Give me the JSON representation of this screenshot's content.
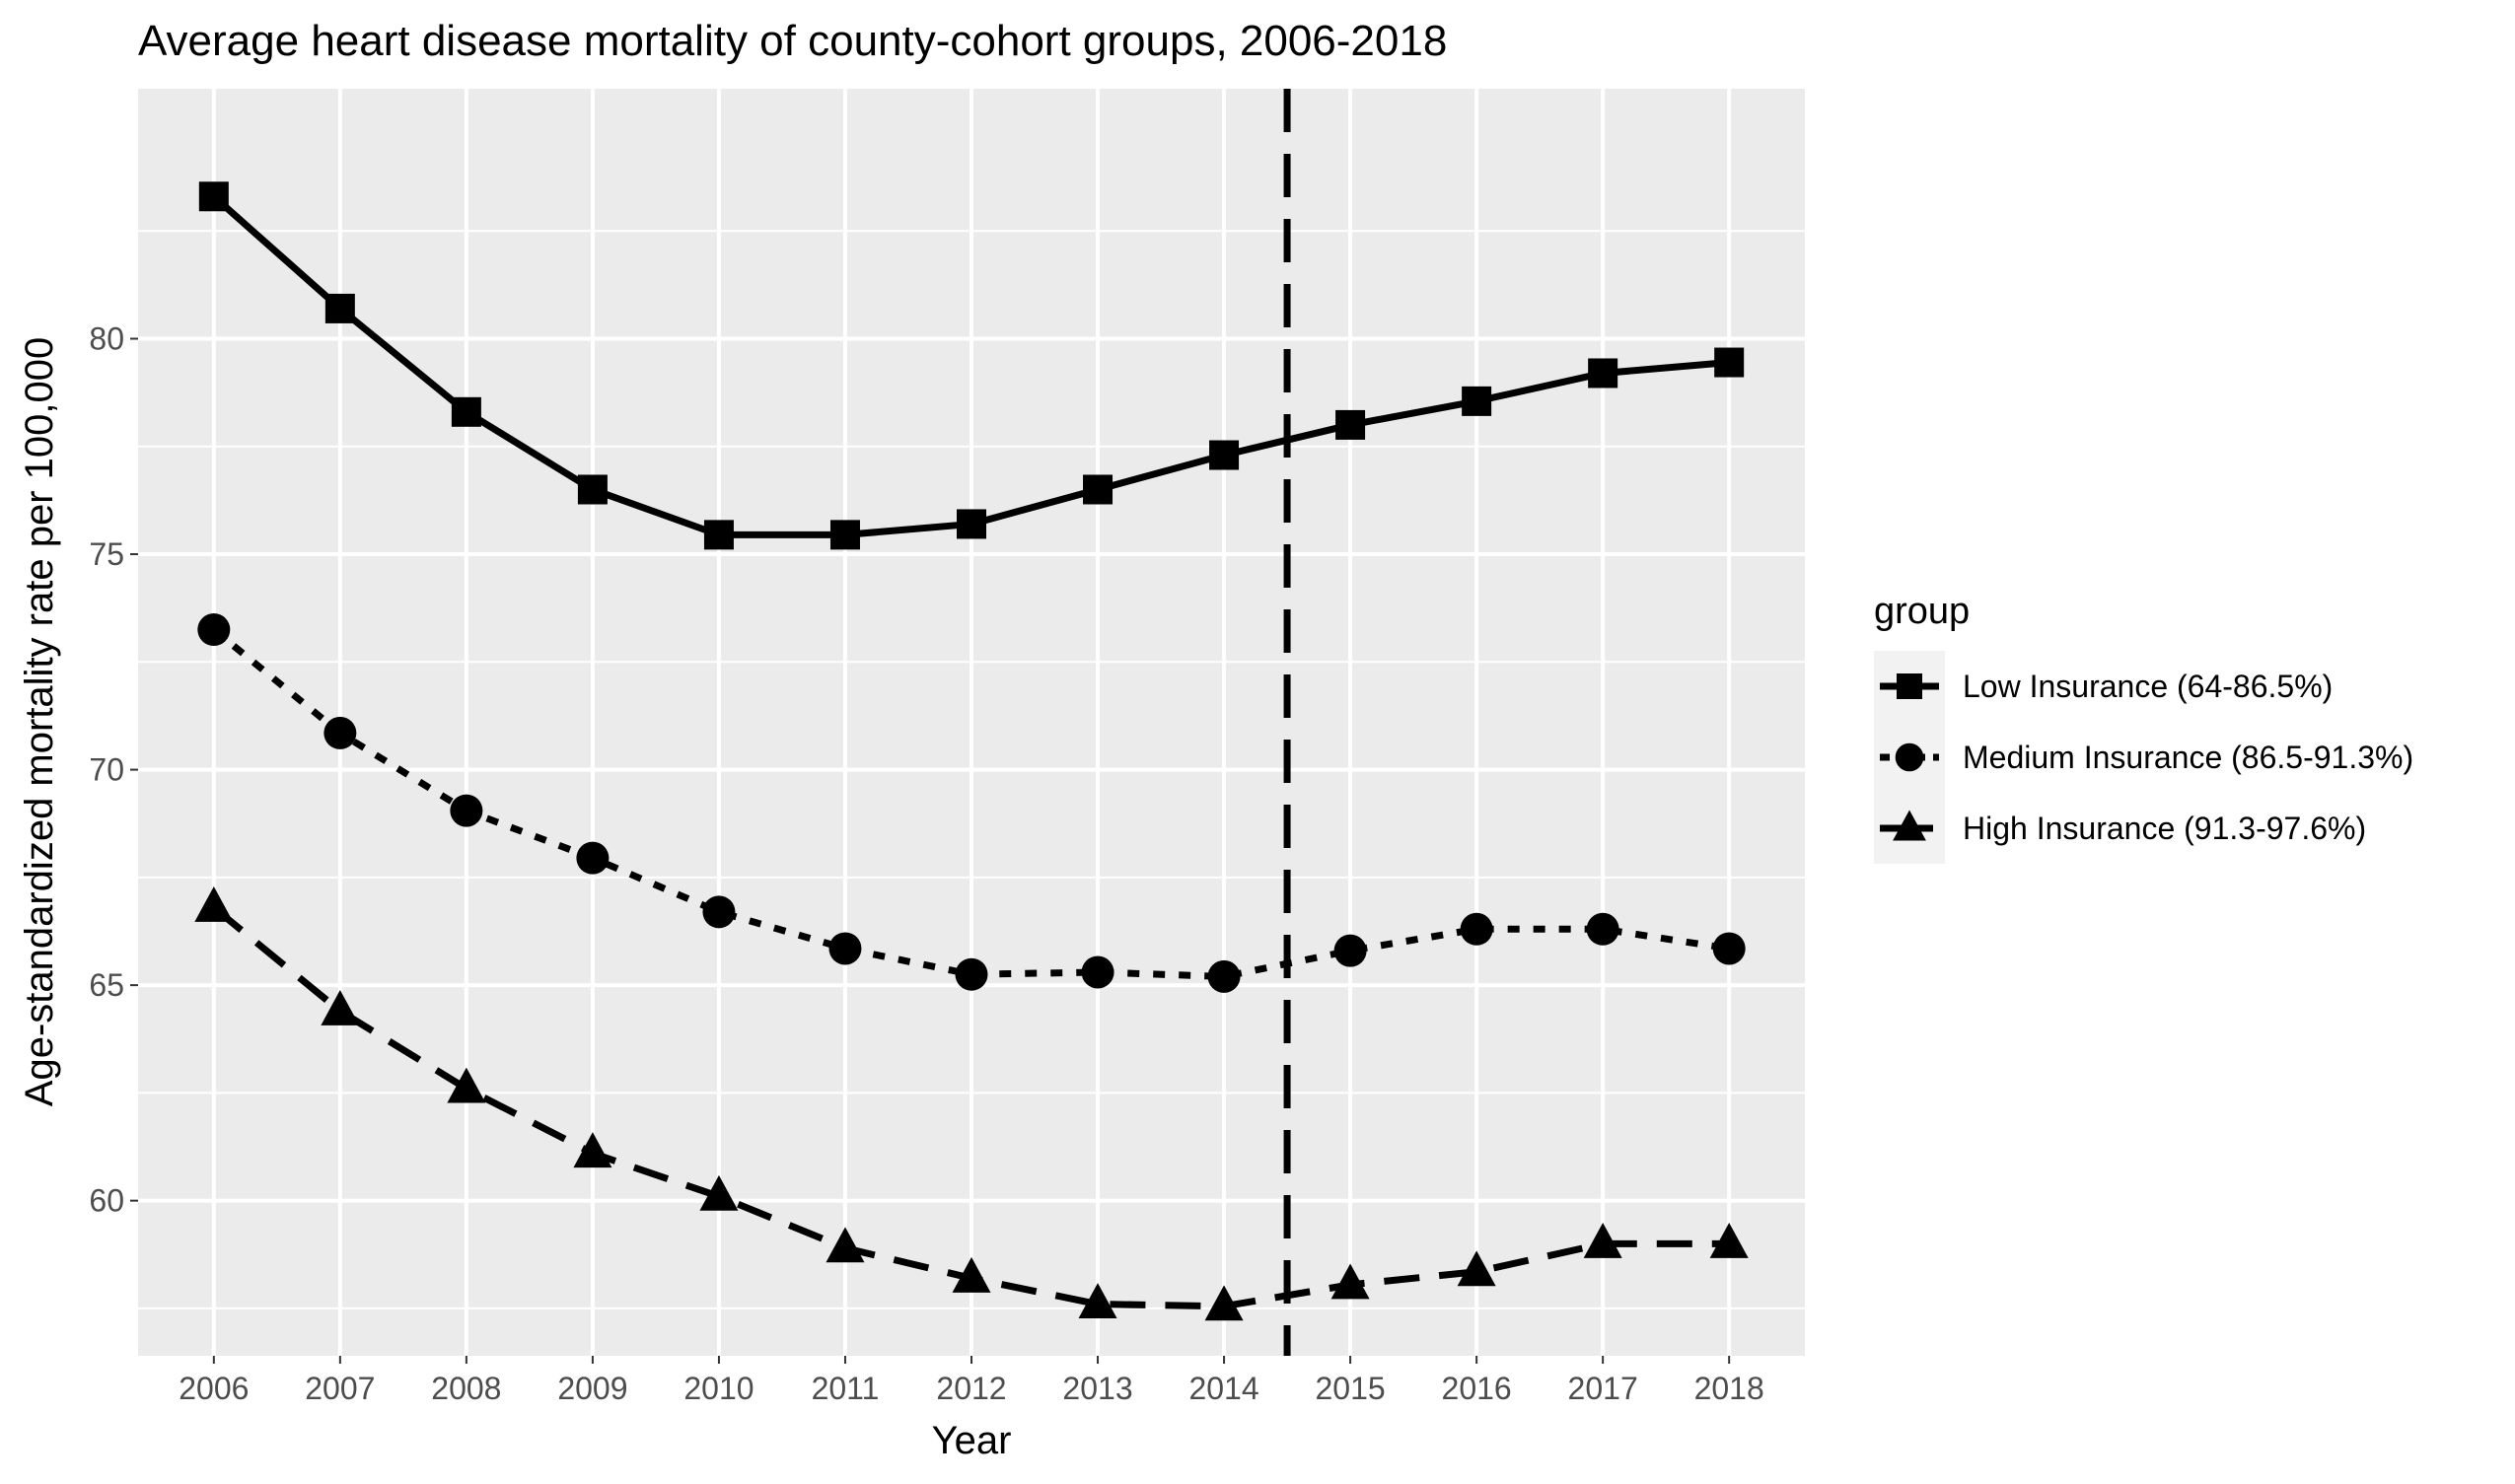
{
  "chart_data": {
    "type": "line",
    "title": "Average heart disease mortality of county-cohort groups, 2006-2018",
    "xlabel": "Year",
    "ylabel": "Age-standardized mortality rate per 100,000",
    "x": [
      2006,
      2007,
      2008,
      2009,
      2010,
      2011,
      2012,
      2013,
      2014,
      2015,
      2016,
      2017,
      2018
    ],
    "y_ticks": [
      60,
      65,
      70,
      75,
      80
    ],
    "ylim": [
      56.4,
      85.8
    ],
    "grid": true,
    "panel_background": "#ebebeb",
    "reference_line": {
      "x": 2014.5,
      "style": "dashed"
    },
    "legend": {
      "title": "group",
      "placement": "right"
    },
    "series": [
      {
        "name": "Low Insurance (64-86.5%)",
        "marker": "square",
        "line_style": "solid",
        "values": [
          83.3,
          80.7,
          78.3,
          76.5,
          75.45,
          75.45,
          75.7,
          76.5,
          77.3,
          78.0,
          78.55,
          79.2,
          79.45
        ]
      },
      {
        "name": "Medium Insurance (86.5-91.3%)",
        "marker": "circle",
        "line_style": "dotted",
        "values": [
          73.25,
          70.85,
          69.05,
          67.95,
          66.7,
          65.85,
          65.25,
          65.3,
          65.2,
          65.8,
          66.3,
          66.3,
          65.85
        ]
      },
      {
        "name": "High Insurance (91.3-97.6%)",
        "marker": "triangle",
        "line_style": "dashed",
        "values": [
          66.8,
          64.4,
          62.6,
          61.1,
          60.1,
          58.9,
          58.2,
          57.6,
          57.55,
          58.05,
          58.35,
          59.0,
          59.0
        ]
      }
    ]
  }
}
